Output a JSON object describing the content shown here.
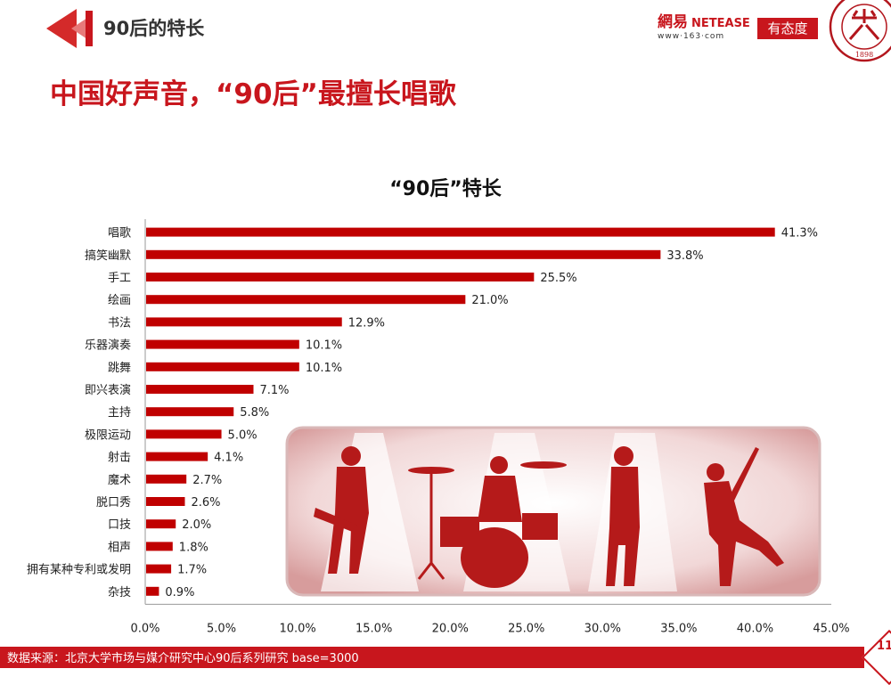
{
  "header": {
    "section_title": "90后的特长"
  },
  "logos": {
    "netease_cn": "網易",
    "netease_en": "NETEASE",
    "netease_url": "www·163·com",
    "youtaidu": "有态度",
    "seal_year": "1898"
  },
  "main_title": "中国好声音，“90后”最擅长唱歌",
  "chart_data": {
    "type": "bar",
    "orientation": "horizontal",
    "title": "“90后”特长",
    "categories": [
      "唱歌",
      "搞笑幽默",
      "手工",
      "绘画",
      "书法",
      "乐器演奏",
      "跳舞",
      "即兴表演",
      "主持",
      "极限运动",
      "射击",
      "魔术",
      "脱口秀",
      "口技",
      "相声",
      "拥有某种专利或发明",
      "杂技"
    ],
    "values": [
      41.3,
      33.8,
      25.5,
      21.0,
      12.9,
      10.1,
      10.1,
      7.1,
      5.8,
      5.0,
      4.1,
      2.7,
      2.6,
      2.0,
      1.8,
      1.7,
      0.9
    ],
    "value_labels": [
      "41.3%",
      "33.8%",
      "25.5%",
      "21.0%",
      "12.9%",
      "10.1%",
      "10.1%",
      "7.1%",
      "5.8%",
      "5.0%",
      "4.1%",
      "2.7%",
      "2.6%",
      "2.0%",
      "1.8%",
      "1.7%",
      "0.9%"
    ],
    "x_ticks": [
      "0.0%",
      "5.0%",
      "10.0%",
      "15.0%",
      "20.0%",
      "25.0%",
      "30.0%",
      "35.0%",
      "40.0%",
      "45.0%"
    ],
    "xlim": [
      0,
      45
    ],
    "bar_color": "#c00000",
    "grid": false
  },
  "footer": {
    "source": "数据来源：北京大学市场与媒介研究中心90后系列研究 base=3000",
    "page_number": "11"
  }
}
